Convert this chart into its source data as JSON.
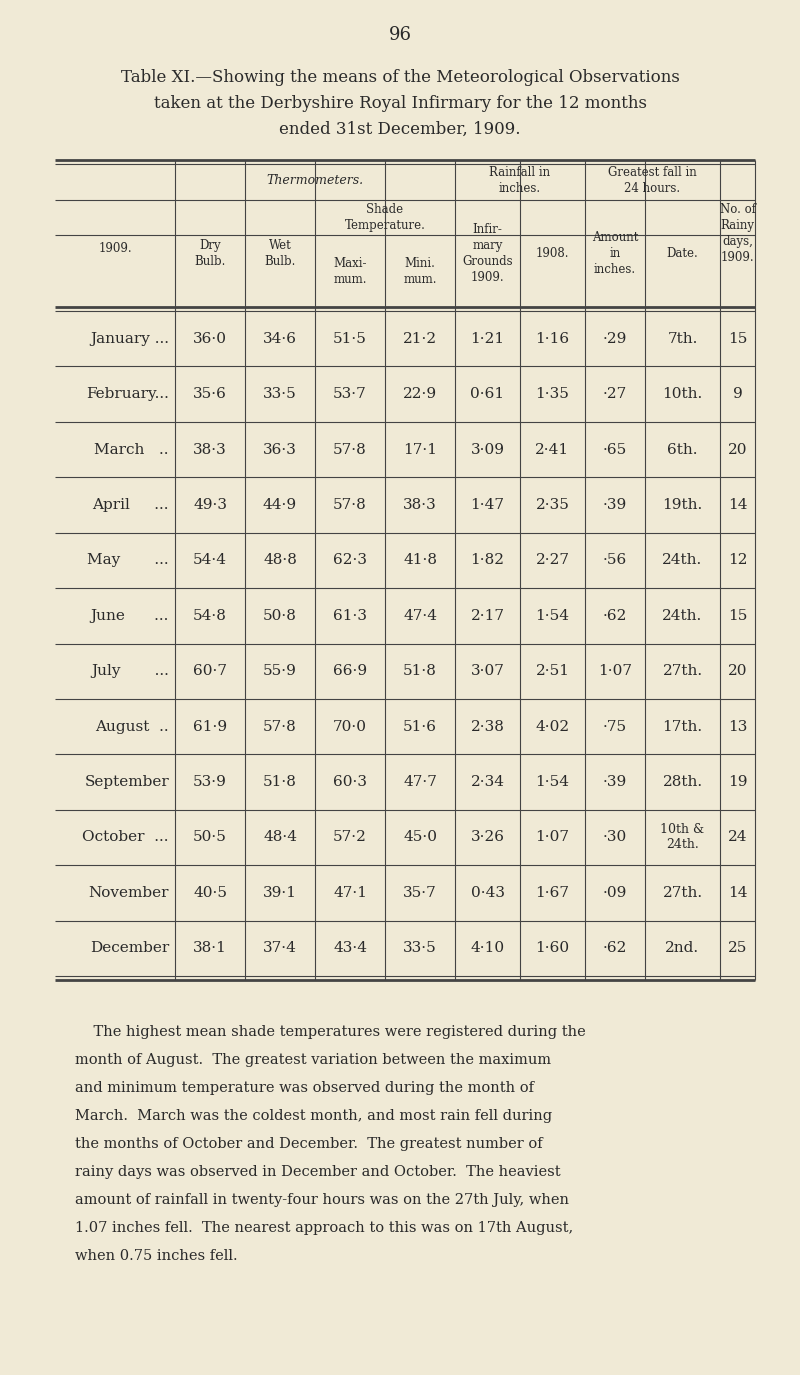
{
  "page_number": "96",
  "bg_color": "#f0ead6",
  "text_color": "#2a2a2a",
  "line_color": "#444444",
  "months": [
    "January ...",
    "February...",
    "March   ..",
    "April     ...",
    "May       ...",
    "June      ...",
    "July       ...",
    "August  ..",
    "September",
    "October  ...",
    "November",
    "December"
  ],
  "dry_bulb": [
    "36·0",
    "35·6",
    "38·3",
    "49·3",
    "54·4",
    "54·8",
    "60·7",
    "61·9",
    "53·9",
    "50·5",
    "40·5",
    "38·1"
  ],
  "wet_bulb": [
    "34·6",
    "33·5",
    "36·3",
    "44·9",
    "48·8",
    "50·8",
    "55·9",
    "57·8",
    "51·8",
    "48·4",
    "39·1",
    "37·4"
  ],
  "shade_max": [
    "51·5",
    "53·7",
    "57·8",
    "57·8",
    "62·3",
    "61·3",
    "66·9",
    "70·0",
    "60·3",
    "57·2",
    "47·1",
    "43·4"
  ],
  "shade_min": [
    "21·2",
    "22·9",
    "17·1",
    "38·3",
    "41·8",
    "47·4",
    "51·8",
    "51·6",
    "47·7",
    "45·0",
    "35·7",
    "33·5"
  ],
  "infirmary_1909": [
    "1·21",
    "0·61",
    "3·09",
    "1·47",
    "1·82",
    "2·17",
    "3·07",
    "2·38",
    "2·34",
    "3·26",
    "0·43",
    "4·10"
  ],
  "rainfall_1908": [
    "1·16",
    "1·35",
    "2·41",
    "2·35",
    "2·27",
    "1·54",
    "2·51",
    "4·02",
    "1·54",
    "1·07",
    "1·67",
    "1·60"
  ],
  "amount_in": [
    "·29",
    "·27",
    "·65",
    "·39",
    "·56",
    "·62",
    "1·07",
    "·75",
    "·39",
    "·30",
    "·09",
    "·62"
  ],
  "date": [
    "7th.",
    "10th.",
    "6th.",
    "19th.",
    "24th.",
    "24th.",
    "27th.",
    "17th.",
    "28th.",
    "10th &\n24th.",
    "27th.",
    "2nd."
  ],
  "rainy_days": [
    "15",
    "9",
    "20",
    "14",
    "12",
    "15",
    "20",
    "13",
    "19",
    "24",
    "14",
    "25"
  ],
  "footnote": "    The highest mean shade temperatures were registered during the\nmonth of August.  The greatest variation between the maximum\nand minimum temperature was observed during the month of\nMarch.  March was the coldest month, and most rain fell during\nthe months of October and December.  The greatest number of\nrainy days was observed in December and October.  The heaviest\namount of rainfall in twenty-four hours was on the 27th July, when\n1.07 inches fell.  The nearest approach to this was on 17th August,\nwhen 0.75 inches fell."
}
